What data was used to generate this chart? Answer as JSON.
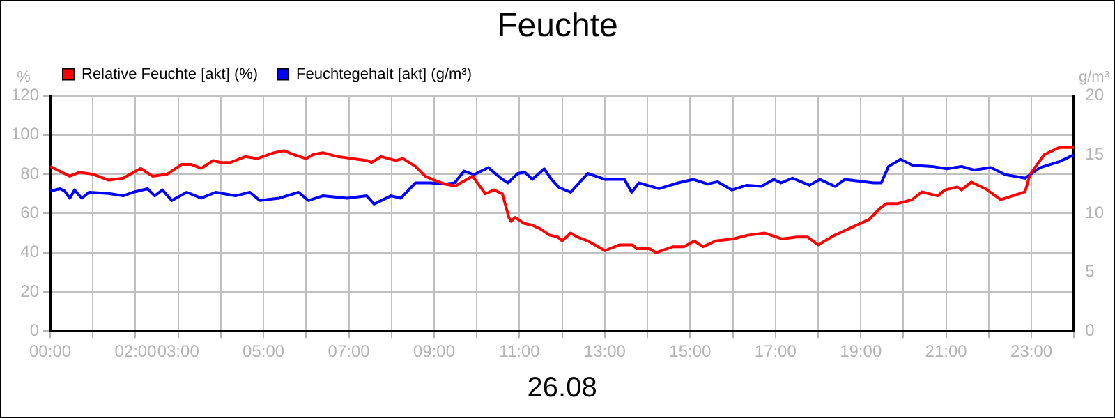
{
  "chart_data": {
    "type": "line",
    "title": "Feuchte",
    "xlabel": "26.08",
    "ylabel": "%",
    "y2label": "g/m³",
    "xlim": [
      0,
      24
    ],
    "xticks": [
      {
        "value": 0,
        "label": "00:00"
      },
      {
        "value": 1,
        "label": null
      },
      {
        "value": 2,
        "label": "02:00"
      },
      {
        "value": 3,
        "label": "03:00"
      },
      {
        "value": 4,
        "label": null
      },
      {
        "value": 5,
        "label": "05:00"
      },
      {
        "value": 6,
        "label": null
      },
      {
        "value": 7,
        "label": "07:00"
      },
      {
        "value": 8,
        "label": null
      },
      {
        "value": 9,
        "label": "09:00"
      },
      {
        "value": 10,
        "label": null
      },
      {
        "value": 11,
        "label": "11:00"
      },
      {
        "value": 12,
        "label": null
      },
      {
        "value": 13,
        "label": "13:00"
      },
      {
        "value": 14,
        "label": null
      },
      {
        "value": 15,
        "label": "15:00"
      },
      {
        "value": 16,
        "label": null
      },
      {
        "value": 17,
        "label": "17:00"
      },
      {
        "value": 18,
        "label": null
      },
      {
        "value": 19,
        "label": "19:00"
      },
      {
        "value": 20,
        "label": null
      },
      {
        "value": 21,
        "label": "21:00"
      },
      {
        "value": 22,
        "label": null
      },
      {
        "value": 23,
        "label": "23:00"
      },
      {
        "value": 24,
        "label": null
      }
    ],
    "ylim": [
      0,
      120
    ],
    "yticks": [
      0,
      20,
      40,
      60,
      80,
      100,
      120
    ],
    "y2lim": [
      0,
      20
    ],
    "y2ticks": [
      0,
      5,
      10,
      15,
      20
    ],
    "grid": true,
    "legend": "top left",
    "marker": "none",
    "line_style": "solid",
    "series": [
      {
        "name": "Relative Feuchte [akt] (%)",
        "color": "#ff0000",
        "axis": "y",
        "x": [
          0,
          0.46,
          0.68,
          1.0,
          1.37,
          1.71,
          2.12,
          2.4,
          2.74,
          3.08,
          3.31,
          3.54,
          3.82,
          4.0,
          4.22,
          4.57,
          4.85,
          5.25,
          5.48,
          5.71,
          6.0,
          6.16,
          6.39,
          6.74,
          7.08,
          7.42,
          7.53,
          7.76,
          8.1,
          8.27,
          8.56,
          8.79,
          9.0,
          9.25,
          9.5,
          9.65,
          9.9,
          10.2,
          10.4,
          10.6,
          10.75,
          10.8,
          10.9,
          11.1,
          11.3,
          11.5,
          11.7,
          11.9,
          12.0,
          12.2,
          12.35,
          12.6,
          13.0,
          13.35,
          13.65,
          13.75,
          14.05,
          14.2,
          14.6,
          14.85,
          15.1,
          15.3,
          15.6,
          16.0,
          16.35,
          16.75,
          17.15,
          17.5,
          17.75,
          18.0,
          18.4,
          18.6,
          18.7,
          19.2,
          19.44,
          19.6,
          19.85,
          20.2,
          20.43,
          20.8,
          20.98,
          21.26,
          21.36,
          21.59,
          21.93,
          22.28,
          22.56,
          22.85,
          22.97,
          23.3,
          23.65,
          24
        ],
        "values": [
          84,
          79,
          81,
          80,
          77,
          78,
          83,
          79,
          80,
          85,
          85,
          83,
          87,
          86,
          86,
          89,
          88,
          91,
          92,
          90,
          88,
          90,
          91,
          89,
          88,
          87,
          86,
          89,
          87,
          88,
          84,
          79,
          77,
          75,
          74,
          76,
          79,
          70,
          72,
          70,
          58,
          56,
          58,
          55,
          54,
          52,
          49,
          48,
          46,
          50,
          48,
          46,
          41,
          44,
          44,
          42,
          42,
          40,
          43,
          43,
          46,
          43,
          46,
          47,
          48.9,
          50,
          47,
          48,
          48,
          44,
          49,
          51,
          52,
          57,
          62.5,
          65,
          65,
          67,
          71,
          69,
          72,
          73.5,
          72,
          76,
          72.5,
          67,
          69,
          71,
          80,
          90,
          93.6,
          93.6
        ]
      },
      {
        "name": "Feuchtegehalt [akt] (g/m³)",
        "color": "#0000ff",
        "axis": "y2",
        "x": [
          0,
          0.23,
          0.34,
          0.46,
          0.57,
          0.74,
          0.91,
          1.37,
          1.71,
          1.94,
          2.28,
          2.45,
          2.63,
          2.85,
          3.2,
          3.54,
          3.88,
          4.34,
          4.68,
          4.91,
          5.37,
          5.82,
          6.05,
          6.39,
          6.96,
          7.42,
          7.59,
          7.99,
          8.22,
          8.56,
          8.9,
          9.25,
          9.48,
          9.7,
          9.93,
          10.27,
          10.56,
          10.73,
          10.96,
          11.13,
          11.3,
          11.58,
          11.75,
          11.93,
          12.2,
          12.6,
          13.0,
          13.46,
          13.63,
          13.8,
          14.27,
          14.72,
          15.07,
          15.41,
          15.64,
          15.98,
          16.33,
          16.67,
          16.96,
          17.13,
          17.4,
          17.8,
          18.04,
          18.4,
          18.63,
          19.3,
          19.48,
          19.65,
          19.93,
          20.22,
          20.67,
          21.02,
          21.36,
          21.65,
          22.05,
          22.39,
          22.85,
          23.2,
          23.65,
          24
        ],
        "values": [
          11.9,
          12.1,
          11.9,
          11.3,
          12.0,
          11.3,
          11.8,
          11.7,
          11.5,
          11.8,
          12.1,
          11.5,
          12.0,
          11.1,
          11.8,
          11.3,
          11.8,
          11.5,
          11.8,
          11.1,
          11.3,
          11.8,
          11.1,
          11.5,
          11.3,
          11.5,
          10.8,
          11.5,
          11.3,
          12.6,
          12.6,
          12.5,
          12.6,
          13.6,
          13.3,
          13.9,
          13.0,
          12.6,
          13.4,
          13.5,
          12.9,
          13.8,
          12.9,
          12.2,
          11.8,
          13.4,
          12.9,
          12.9,
          11.8,
          12.6,
          12.1,
          12.6,
          12.9,
          12.5,
          12.7,
          12.0,
          12.4,
          12.3,
          12.9,
          12.6,
          13.0,
          12.4,
          12.9,
          12.3,
          12.9,
          12.6,
          12.6,
          14.0,
          14.6,
          14.1,
          14.0,
          13.8,
          14.0,
          13.7,
          13.9,
          13.3,
          13.0,
          13.9,
          14.4,
          15.0
        ]
      }
    ]
  }
}
